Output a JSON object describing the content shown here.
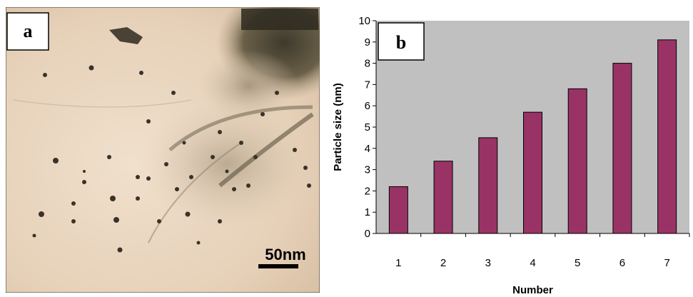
{
  "panel_a": {
    "label": "a",
    "scale_bar_label": "50nm"
  },
  "panel_b": {
    "label": "b"
  },
  "colors": {
    "bar": "#993366",
    "plot_background": "#c0c0c0",
    "micrograph_background": "#e8d6c2"
  },
  "chart_data": {
    "type": "bar",
    "categories": [
      "1",
      "2",
      "3",
      "4",
      "5",
      "6",
      "7"
    ],
    "values": [
      2.2,
      3.4,
      4.5,
      5.7,
      6.8,
      8.0,
      9.1
    ],
    "xlabel": "Number",
    "ylabel": "Particle size  (nm)",
    "ylim": [
      0,
      10
    ],
    "yticks": [
      0,
      1,
      2,
      3,
      4,
      5,
      6,
      7,
      8,
      9,
      10
    ],
    "grid": false,
    "legend": "none"
  }
}
